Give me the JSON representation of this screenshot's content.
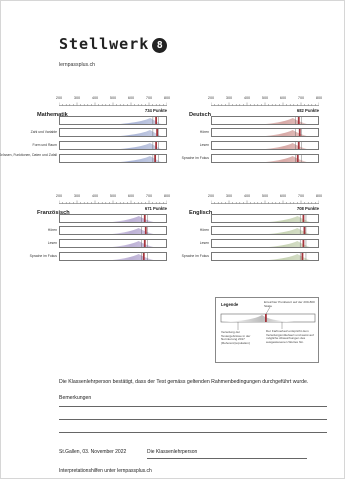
{
  "header": {
    "brand": "Stellwerk",
    "brand_badge": "8",
    "site": "lernpassplus.ch"
  },
  "axis": {
    "ticks": [
      "200",
      "300",
      "400",
      "500",
      "600",
      "700",
      "800"
    ],
    "range": [
      200,
      800
    ]
  },
  "colors": {
    "mathematik": "#a9b4d6",
    "deutsch": "#d8a9a6",
    "franzoesisch": "#bdb1d6",
    "englisch": "#c7d3b4",
    "marker": "#a4343b"
  },
  "panels": [
    {
      "subject": "Mathematik",
      "score_label": "734 Punkte",
      "score": 734,
      "color_key": "mathematik",
      "rows": [
        "Zahl und Variable",
        "Form und Raum",
        "Grössen, Funktionen, Daten und Zufall"
      ]
    },
    {
      "subject": "Deutsch",
      "score_label": "682 Punkte",
      "score": 682,
      "color_key": "deutsch",
      "rows": [
        "Hören",
        "Lesen",
        "Sprache im Fokus"
      ]
    },
    {
      "subject": "Französisch",
      "score_label": "671 Punkte",
      "score": 671,
      "color_key": "franzoesisch",
      "rows": [
        "Hören",
        "Lesen",
        "Sprache im Fokus"
      ]
    },
    {
      "subject": "Englisch",
      "score_label": "708 Punkte",
      "score": 708,
      "color_key": "englisch",
      "rows": [
        "Hören",
        "Lesen",
        "Sprache im Fokus"
      ]
    }
  ],
  "legend": {
    "title": "Legende",
    "achieved": "Erreichter Punktwert auf der 200-800 Skala",
    "norm": "Verteilung der Testergebnisse in der Normierung 2017 (Referenzpopulation)",
    "profile": "Der Farbverlauf entspricht dem Verteilungsmittelwert und weist auf mögliche Abweichungen des ausgewiesenen Wertes hin."
  },
  "footer": {
    "statement": "Die Klassenlehrperson bestätigt, dass der Test gemäss geltenden Rahmenbedingungen durchgeführt wurde.",
    "remarks": "Bemerkungen",
    "date": "St.Gallen, 03. November 2022",
    "teacher": "Die Klassenlehrperson",
    "link": "Interpretationshilfen unter lernpassplus.ch"
  }
}
